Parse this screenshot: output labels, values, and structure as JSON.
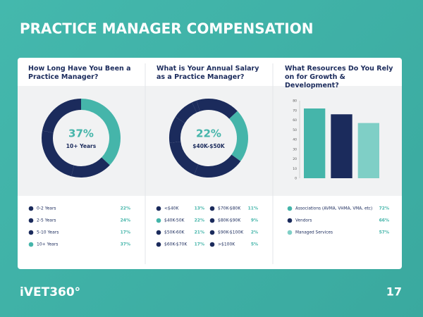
{
  "header": {
    "title": "PRACTICE MANAGER COMPENSATION"
  },
  "footer": {
    "brand": "iVET360°",
    "page": "17"
  },
  "chart_data": [
    {
      "type": "donut",
      "title": "How Long Have You Been a Practice Manager?",
      "center_text": [
        "37%",
        "10+ Years"
      ],
      "direction": "counterclockwise",
      "categories": [
        "0-2 Years",
        "2-5 Years",
        "5-10 Years",
        "10+ Years"
      ],
      "values": [
        22,
        24,
        17,
        37
      ],
      "value_labels": [
        "22%",
        "24%",
        "17%",
        "37%"
      ],
      "colors": [
        "#1b2b5c",
        "#1b2b5c",
        "#1b2b5c",
        "#45b5aa"
      ]
    },
    {
      "type": "donut",
      "title": "What is Your Annual Salary as a Practice Manager?",
      "center_text": [
        "22%",
        "$40K-$50K"
      ],
      "direction": "clockwise",
      "categories": [
        "<$40K",
        "$40K-50K",
        "$50K-60K",
        "$60K-$70K",
        "$70K-$80K",
        "$80K-$90K",
        "$90K-$100K",
        ">$100K"
      ],
      "values": [
        13,
        22,
        21,
        17,
        11,
        9,
        2,
        5
      ],
      "value_labels": [
        "13%",
        "22%",
        "21%",
        "17%",
        "11%",
        "9%",
        "2%",
        "5%"
      ],
      "colors": [
        "#1b2b5c",
        "#45b5aa",
        "#1b2b5c",
        "#1b2b5c",
        "#1b2b5c",
        "#1b2b5c",
        "#1b2b5c",
        "#1b2b5c"
      ]
    },
    {
      "type": "bar",
      "title": "What Resources Do You Rely on for Growth & Development?",
      "categories": [
        "Associations (AVMA, VHMA, VMA, etc)",
        "Vendors",
        "Managed Services"
      ],
      "values": [
        72,
        66,
        57
      ],
      "value_labels": [
        "72%",
        "66%",
        "57%"
      ],
      "colors": [
        "#45b5aa",
        "#1b2b5c",
        "#7fcfc6"
      ],
      "ylim": [
        0,
        80
      ],
      "yticks": [
        0,
        10,
        20,
        30,
        40,
        50,
        60,
        70,
        80
      ]
    }
  ]
}
